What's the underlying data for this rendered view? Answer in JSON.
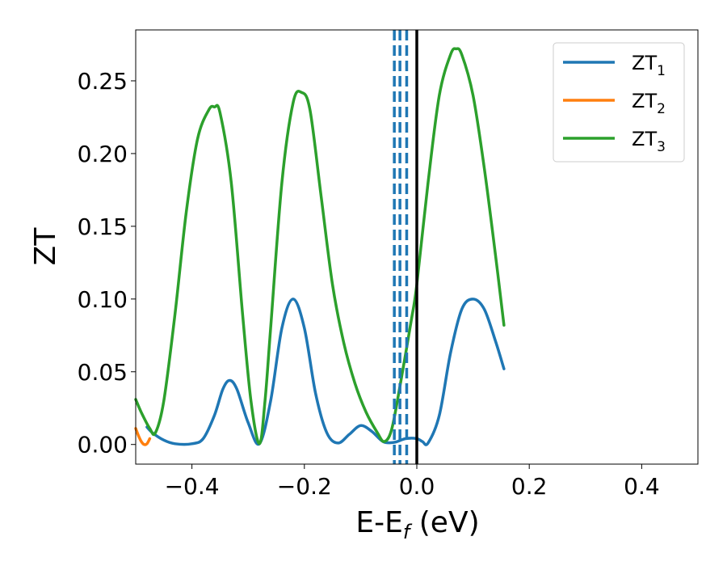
{
  "chart_data": {
    "type": "line",
    "xlabel": "E-E",
    "xlabel_sub": "f",
    "xlabel_unit": " (eV)",
    "ylabel": "ZT",
    "xlim": [
      -0.5,
      0.5
    ],
    "ylim": [
      -0.0135,
      0.285
    ],
    "xticks": [
      -0.4,
      -0.2,
      0.0,
      0.2,
      0.4
    ],
    "xtick_labels": [
      "−0.4",
      "−0.2",
      "0.0",
      "0.2",
      "0.4"
    ],
    "yticks": [
      0.0,
      0.05,
      0.1,
      0.15,
      0.2,
      0.25
    ],
    "ytick_labels": [
      "0.00",
      "0.05",
      "0.10",
      "0.15",
      "0.20",
      "0.25"
    ],
    "grid": false,
    "legend_position": "top-right",
    "series": [
      {
        "name": "ZT",
        "name_sub": "1",
        "color": "#1f77b4",
        "x": [
          -0.48,
          -0.47,
          -0.45,
          -0.43,
          -0.4,
          -0.38,
          -0.36,
          -0.345,
          -0.333,
          -0.32,
          -0.3,
          -0.28,
          -0.26,
          -0.24,
          -0.22,
          -0.2,
          -0.18,
          -0.16,
          -0.14,
          -0.12,
          -0.1,
          -0.08,
          -0.06,
          -0.04,
          -0.02,
          0.0,
          0.01,
          0.02,
          0.04,
          0.06,
          0.08,
          0.1,
          0.12,
          0.14,
          0.155
        ],
        "y": [
          0.012,
          0.008,
          0.003,
          0.0005,
          0.0005,
          0.004,
          0.02,
          0.038,
          0.044,
          0.038,
          0.015,
          0.0005,
          0.03,
          0.08,
          0.1,
          0.08,
          0.035,
          0.008,
          0.001,
          0.007,
          0.013,
          0.009,
          0.002,
          0.0015,
          0.004,
          0.004,
          0.002,
          0.001,
          0.02,
          0.063,
          0.093,
          0.1,
          0.093,
          0.071,
          0.052
        ]
      },
      {
        "name": "ZT",
        "name_sub": "2",
        "color": "#ff7f0e",
        "x": [
          -0.5,
          -0.495,
          -0.49,
          -0.485,
          -0.48,
          -0.475
        ],
        "y": [
          0.011,
          0.006,
          0.002,
          0.0,
          0.0005,
          0.004
        ]
      },
      {
        "name": "ZT",
        "name_sub": "3",
        "color": "#2ca02c",
        "x": [
          -0.5,
          -0.49,
          -0.475,
          -0.465,
          -0.45,
          -0.43,
          -0.41,
          -0.39,
          -0.37,
          -0.36,
          -0.35,
          -0.33,
          -0.31,
          -0.295,
          -0.28,
          -0.27,
          -0.26,
          -0.24,
          -0.22,
          -0.205,
          -0.19,
          -0.17,
          -0.15,
          -0.13,
          -0.11,
          -0.09,
          -0.07,
          -0.058,
          -0.045,
          -0.03,
          -0.01,
          0.0,
          0.02,
          0.04,
          0.06,
          0.07,
          0.08,
          0.1,
          0.12,
          0.14,
          0.155
        ],
        "y": [
          0.031,
          0.022,
          0.011,
          0.008,
          0.03,
          0.09,
          0.16,
          0.21,
          0.23,
          0.232,
          0.228,
          0.18,
          0.09,
          0.03,
          0.0005,
          0.03,
          0.08,
          0.18,
          0.235,
          0.242,
          0.23,
          0.17,
          0.11,
          0.07,
          0.042,
          0.022,
          0.008,
          0.002,
          0.01,
          0.04,
          0.085,
          0.11,
          0.18,
          0.24,
          0.268,
          0.272,
          0.268,
          0.24,
          0.19,
          0.13,
          0.082
        ]
      }
    ],
    "vlines": [
      {
        "x": -0.04,
        "color": "#1f77b4",
        "style": "dashed"
      },
      {
        "x": -0.03,
        "color": "#1f77b4",
        "style": "dashed"
      },
      {
        "x": -0.018,
        "color": "#1f77b4",
        "style": "dashed"
      },
      {
        "x": 0.0,
        "color": "#000000",
        "style": "solid"
      }
    ]
  }
}
